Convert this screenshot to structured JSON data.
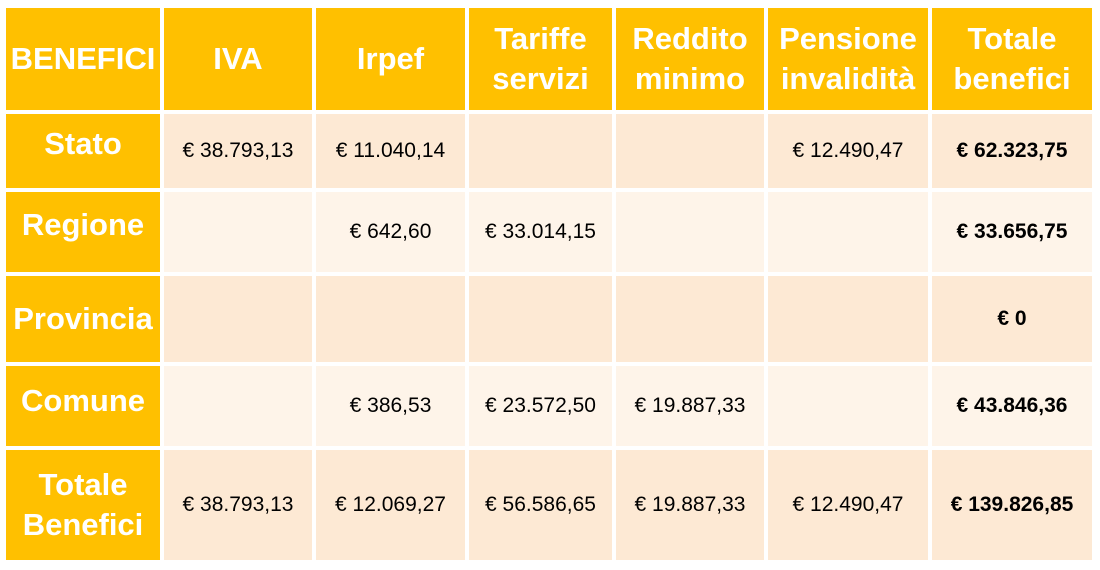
{
  "chart_data": {
    "type": "table",
    "columns": [
      "BENEFICI",
      "IVA",
      "Irpef",
      "Tariffe servizi",
      "Reddito minimo",
      "Pensione invalidità",
      "Totale benefici"
    ],
    "columns_display": [
      [
        "BENEFICI"
      ],
      [
        "IVA"
      ],
      [
        "Irpef"
      ],
      [
        "Tariffe",
        "servizi"
      ],
      [
        "Reddito",
        "minimo"
      ],
      [
        "Pensione",
        "invalidità"
      ],
      [
        "Totale",
        "benefici"
      ]
    ],
    "rows": [
      {
        "label": [
          "Stato"
        ],
        "cells": [
          "€ 38.793,13",
          "€ 11.040,14",
          "",
          "",
          "€ 12.490,47",
          "€ 62.323,75"
        ]
      },
      {
        "label": [
          "Regione"
        ],
        "cells": [
          "",
          "€ 642,60",
          "€ 33.014,15",
          "",
          "",
          "€ 33.656,75"
        ]
      },
      {
        "label": [
          "Provincia"
        ],
        "cells": [
          "",
          "",
          "",
          "",
          "",
          "€ 0"
        ]
      },
      {
        "label": [
          "Comune"
        ],
        "cells": [
          "",
          "€ 386,53",
          "€ 23.572,50",
          "€ 19.887,33",
          "",
          "€ 43.846,36"
        ]
      },
      {
        "label": [
          "Totale",
          "Benefici"
        ],
        "cells": [
          "€ 38.793,13",
          "€ 12.069,27",
          "€ 56.586,65",
          "€ 19.887,33",
          "€ 12.490,47",
          "€ 139.826,85"
        ]
      }
    ],
    "colors": {
      "header_bg": "#ffc000",
      "header_text": "#ffffff",
      "row_dark": "#fde9d4",
      "row_light": "#fef4e9"
    }
  }
}
